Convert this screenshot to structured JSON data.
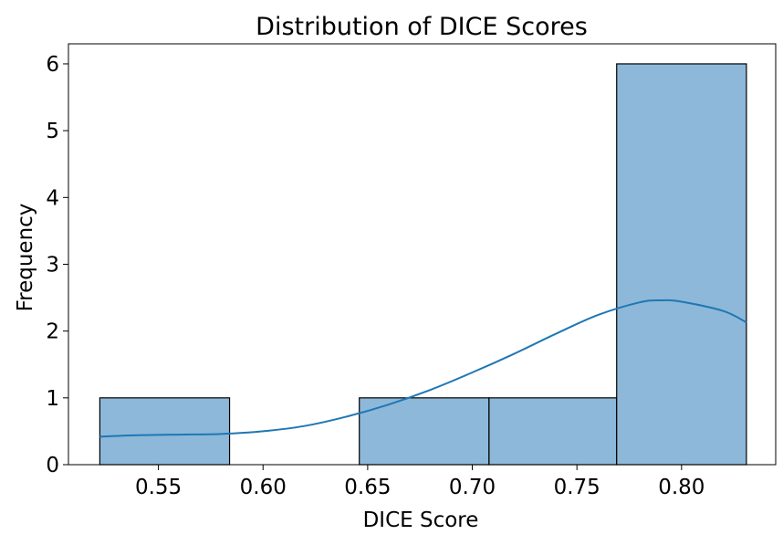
{
  "chart_data": {
    "type": "bar",
    "subtype": "histogram-with-kde",
    "title": "Distribution of DICE Scores",
    "xlabel": "DICE Score",
    "ylabel": "Frequency",
    "xlim": [
      0.507,
      0.845
    ],
    "ylim": [
      0,
      6.3
    ],
    "xticks": [
      "0.55",
      "0.60",
      "0.65",
      "0.70",
      "0.75",
      "0.80"
    ],
    "yticks": [
      "0",
      "1",
      "2",
      "3",
      "4",
      "5",
      "6"
    ],
    "bins": [
      {
        "x0": 0.522,
        "x1": 0.584,
        "count": 1
      },
      {
        "x0": 0.584,
        "x1": 0.646,
        "count": 0
      },
      {
        "x0": 0.646,
        "x1": 0.708,
        "count": 1
      },
      {
        "x0": 0.708,
        "x1": 0.769,
        "count": 1
      },
      {
        "x0": 0.769,
        "x1": 0.831,
        "count": 6
      }
    ],
    "kde": {
      "x": [
        0.522,
        0.54,
        0.56,
        0.58,
        0.6,
        0.62,
        0.64,
        0.66,
        0.68,
        0.7,
        0.72,
        0.74,
        0.76,
        0.78,
        0.79,
        0.8,
        0.82,
        0.831
      ],
      "y": [
        0.42,
        0.44,
        0.45,
        0.46,
        0.5,
        0.58,
        0.72,
        0.9,
        1.12,
        1.38,
        1.66,
        1.96,
        2.24,
        2.43,
        2.46,
        2.44,
        2.3,
        2.13
      ]
    },
    "grid": false,
    "colors": {
      "bar_fill": "#8db8d9",
      "bar_edge": "#000000",
      "kde_line": "#1f77b4"
    }
  }
}
